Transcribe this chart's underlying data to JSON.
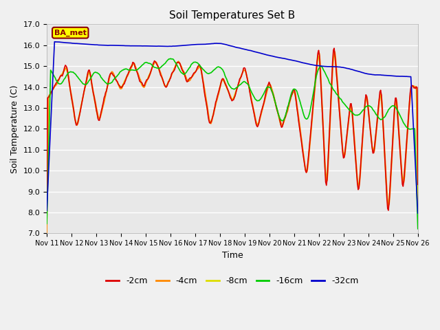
{
  "title": "Soil Temperatures Set B",
  "xlabel": "Time",
  "ylabel": "Soil Temperature (C)",
  "ylim": [
    7.0,
    17.0
  ],
  "yticks": [
    7.0,
    8.0,
    9.0,
    10.0,
    11.0,
    12.0,
    13.0,
    14.0,
    15.0,
    16.0,
    17.0
  ],
  "xtick_labels": [
    "Nov 11",
    "Nov 12",
    "Nov 13",
    "Nov 14",
    "Nov 15",
    "Nov 16",
    "Nov 17",
    "Nov 18",
    "Nov 19",
    "Nov 20",
    "Nov 21",
    "Nov 22",
    "Nov 23",
    "Nov 24",
    "Nov 25",
    "Nov 26"
  ],
  "colors": {
    "red": "#dd0000",
    "orange": "#ff8800",
    "yellow": "#dddd00",
    "green": "#00cc00",
    "blue": "#0000cc"
  },
  "legend_labels": [
    "-2cm",
    "-4cm",
    "-8cm",
    "-16cm",
    "-32cm"
  ],
  "bg_color": "#e8e8e8",
  "grid_color": "#ffffff",
  "annotation_text": "BA_met",
  "annotation_bg": "#ffff00",
  "annotation_border": "#8b0000"
}
